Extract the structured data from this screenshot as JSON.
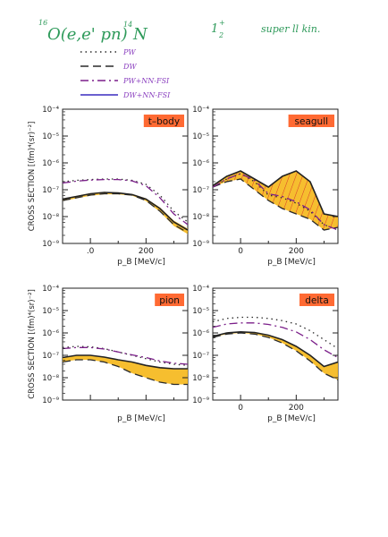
{
  "header": {
    "isotope_top": "16",
    "reaction": "O(e,e' pn)",
    "product_top": "14",
    "product": "N",
    "state": "1",
    "state_sup": "+",
    "state_sub": "2",
    "kinematics": "super ll  kin."
  },
  "legend": [
    {
      "label": "PW",
      "style": "dotted",
      "color": "#2a2a2a"
    },
    {
      "label": "DW",
      "style": "dashed",
      "color": "#2a2a2a"
    },
    {
      "label": "PW+NN-FSI",
      "style": "dashdot",
      "color": "#7b1f8a"
    },
    {
      "label": "DW+NN-FSI",
      "style": "solid",
      "color": "#3a2bbf"
    }
  ],
  "colors": {
    "band_fill": "#f5b718",
    "label_fill": "#ff6a33",
    "hatch": "#d83a2a",
    "axis": "#222222",
    "handwriting_green": "#2e9a5a",
    "handwriting_purple": "#8a3fbf"
  },
  "shared_axes": {
    "ylabel": "CROSS SECTION [(fm)⁴(sr)⁻²]",
    "xlabel": "p_B [MeV/c]",
    "xlim": [
      -100,
      350
    ],
    "ylog_exp_range": [
      -9,
      -4
    ],
    "y_ticks": [
      "10⁻⁹",
      "10⁻⁸",
      "10⁻⁷",
      "10⁻⁶",
      "10⁻⁵",
      "10⁻⁴"
    ],
    "x_ticks": [
      "0",
      "200"
    ]
  },
  "chart_data": [
    {
      "type": "line",
      "panel_label": "t–body",
      "x_tick_labels": [
        ".0",
        "200"
      ],
      "x": [
        -100,
        -50,
        0,
        50,
        100,
        150,
        200,
        250,
        300,
        350
      ],
      "series": [
        {
          "name": "PW",
          "values": [
            -6.7,
            -6.65,
            -6.62,
            -6.6,
            -6.6,
            -6.65,
            -6.8,
            -7.2,
            -7.8,
            -8.2
          ]
        },
        {
          "name": "DW",
          "values": [
            -7.4,
            -7.3,
            -7.2,
            -7.15,
            -7.15,
            -7.2,
            -7.4,
            -7.8,
            -8.3,
            -8.6
          ]
        },
        {
          "name": "PW+NN-FSI",
          "values": [
            -6.75,
            -6.68,
            -6.64,
            -6.62,
            -6.62,
            -6.67,
            -6.85,
            -7.3,
            -7.9,
            -8.3
          ]
        },
        {
          "name": "DW+NN-FSI",
          "values": [
            -7.35,
            -7.25,
            -7.15,
            -7.1,
            -7.12,
            -7.18,
            -7.35,
            -7.7,
            -8.2,
            -8.5
          ]
        }
      ],
      "band": {
        "lower": [
          -7.42,
          -7.32,
          -7.22,
          -7.17,
          -7.17,
          -7.22,
          -7.42,
          -7.82,
          -8.35,
          -8.65
        ],
        "upper": [
          -7.33,
          -7.23,
          -7.13,
          -7.08,
          -7.1,
          -7.16,
          -7.32,
          -7.66,
          -8.15,
          -8.45
        ]
      }
    },
    {
      "type": "line",
      "panel_label": "seagull",
      "x_tick_labels": [
        "0",
        "200"
      ],
      "x": [
        -100,
        -50,
        0,
        50,
        100,
        150,
        200,
        250,
        300,
        350
      ],
      "series": [
        {
          "name": "PW",
          "values": [
            -6.9,
            -6.6,
            -6.4,
            -6.7,
            -7.2,
            -7.3,
            -7.5,
            -7.8,
            -8.3,
            -8.5
          ]
        },
        {
          "name": "DW",
          "values": [
            -6.9,
            -6.7,
            -6.6,
            -7.0,
            -7.4,
            -7.7,
            -7.9,
            -8.1,
            -8.5,
            -8.4
          ]
        },
        {
          "name": "PW+NN-FSI",
          "values": [
            -6.9,
            -6.6,
            -6.4,
            -6.65,
            -7.15,
            -7.25,
            -7.45,
            -7.75,
            -8.3,
            -8.5
          ]
        },
        {
          "name": "DW+NN-FSI",
          "values": [
            -6.85,
            -6.5,
            -6.3,
            -6.6,
            -6.9,
            -6.5,
            -6.3,
            -6.7,
            -7.9,
            -8.0
          ]
        }
      ],
      "band": {
        "lower": [
          -6.9,
          -6.7,
          -6.6,
          -7.0,
          -7.4,
          -7.7,
          -7.9,
          -8.1,
          -8.5,
          -8.4
        ],
        "upper": [
          -6.85,
          -6.5,
          -6.3,
          -6.6,
          -6.9,
          -6.5,
          -6.3,
          -6.7,
          -7.9,
          -8.0
        ]
      }
    },
    {
      "type": "line",
      "panel_label": "pion",
      "x_tick_labels": [],
      "x": [
        -100,
        -50,
        0,
        50,
        100,
        150,
        200,
        250,
        300,
        350
      ],
      "series": [
        {
          "name": "PW",
          "values": [
            -6.65,
            -6.6,
            -6.62,
            -6.7,
            -6.85,
            -7.0,
            -7.15,
            -7.3,
            -7.4,
            -7.45
          ]
        },
        {
          "name": "DW",
          "values": [
            -7.3,
            -7.2,
            -7.2,
            -7.3,
            -7.5,
            -7.8,
            -8.0,
            -8.2,
            -8.3,
            -8.3
          ]
        },
        {
          "name": "PW+NN-FSI",
          "values": [
            -6.7,
            -6.65,
            -6.65,
            -6.72,
            -6.85,
            -6.98,
            -7.1,
            -7.25,
            -7.35,
            -7.4
          ]
        },
        {
          "name": "DW+NN-FSI",
          "values": [
            -7.1,
            -7.0,
            -7.0,
            -7.08,
            -7.2,
            -7.3,
            -7.45,
            -7.55,
            -7.6,
            -7.6
          ]
        }
      ],
      "band": {
        "lower": [
          -7.3,
          -7.2,
          -7.2,
          -7.3,
          -7.5,
          -7.8,
          -8.0,
          -8.2,
          -8.3,
          -8.3
        ],
        "upper": [
          -7.1,
          -7.0,
          -7.0,
          -7.08,
          -7.2,
          -7.3,
          -7.45,
          -7.55,
          -7.6,
          -7.6
        ]
      }
    },
    {
      "type": "line",
      "panel_label": "delta",
      "x_tick_labels": [
        "0",
        "200"
      ],
      "x": [
        -100,
        -50,
        0,
        50,
        100,
        150,
        200,
        250,
        300,
        350
      ],
      "series": [
        {
          "name": "PW",
          "values": [
            -5.5,
            -5.35,
            -5.3,
            -5.3,
            -5.35,
            -5.45,
            -5.6,
            -5.9,
            -6.3,
            -6.7
          ]
        },
        {
          "name": "DW",
          "values": [
            -6.2,
            -6.05,
            -6.0,
            -6.05,
            -6.2,
            -6.45,
            -6.8,
            -7.25,
            -7.8,
            -8.1
          ]
        },
        {
          "name": "PW+NN-FSI",
          "values": [
            -5.75,
            -5.6,
            -5.55,
            -5.55,
            -5.62,
            -5.75,
            -5.95,
            -6.3,
            -6.75,
            -7.1
          ]
        },
        {
          "name": "DW+NN-FSI",
          "values": [
            -6.15,
            -6.0,
            -5.95,
            -5.98,
            -6.1,
            -6.3,
            -6.6,
            -7.0,
            -7.5,
            -7.3
          ]
        }
      ],
      "band": {
        "lower": [
          -6.2,
          -6.05,
          -6.0,
          -6.05,
          -6.2,
          -6.45,
          -6.8,
          -7.25,
          -7.8,
          -8.1
        ],
        "upper": [
          -6.15,
          -6.0,
          -5.95,
          -5.98,
          -6.1,
          -6.3,
          -6.6,
          -7.0,
          -7.5,
          -7.3
        ]
      }
    }
  ]
}
